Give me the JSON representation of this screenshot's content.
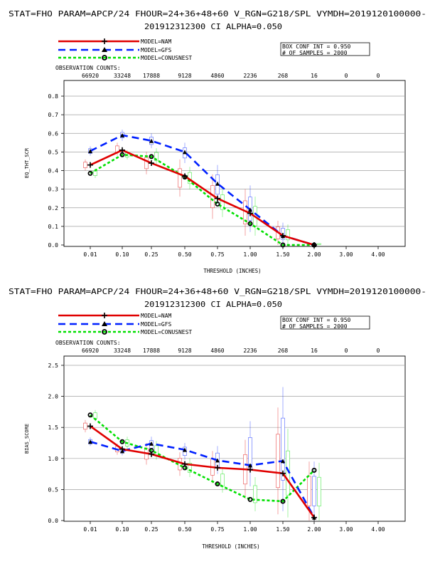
{
  "charts": [
    {
      "title_line1": "STAT=FHO PARAM=APCP/24 FHOUR=24+36+48+60 V_RGN=G218/SPL VYMDH=2019120100000-",
      "title_line2": "201912312300 CI ALPHA=0.050",
      "legend": [
        "MODEL=NAM",
        "MODEL=GFS",
        "MODEL=CONUSNEST"
      ],
      "box_conf": "BOX CONF INT = 0.950",
      "samples": "# OF SAMPLES =  2000",
      "obs_label": "OBSERVATION COUNTS:",
      "obs_counts": [
        "66920",
        "33248",
        "17888",
        "9128",
        "4860",
        "2236",
        "268",
        "16",
        "0",
        "0"
      ],
      "xlabel": "THRESHOLD (INCHES)",
      "ylabel": "EQ_THT_SCR",
      "yticks": [
        "0.0",
        "0.1",
        "0.2",
        "0.3",
        "0.4",
        "0.5",
        "0.6",
        "0.7",
        "0.8"
      ],
      "xticks": [
        "0.01",
        "0.10",
        "0.25",
        "0.50",
        "0.75",
        "1.00",
        "1.50",
        "2.00",
        "3.00",
        "4.00"
      ]
    },
    {
      "title_line1": "STAT=FHO PARAM=APCP/24 FHOUR=24+36+48+60 V_RGN=G218/SPL VYMDH=2019120100000-",
      "title_line2": "201912312300 CI ALPHA=0.050",
      "legend": [
        "MODEL=NAM",
        "MODEL=GFS",
        "MODEL=CONUSNEST"
      ],
      "box_conf": "BOX CONF INT = 0.950",
      "samples": "# OF SAMPLES =  2000",
      "obs_label": "OBSERVATION COUNTS:",
      "obs_counts": [
        "66920",
        "33248",
        "17888",
        "9128",
        "4860",
        "2236",
        "268",
        "16",
        "0",
        "0"
      ],
      "xlabel": "THRESHOLD (INCHES)",
      "ylabel": "BIAS_SCORE",
      "yticks": [
        "0.0",
        "0.5",
        "1.0",
        "1.5",
        "2.0",
        "2.5"
      ],
      "xticks": [
        "0.01",
        "0.10",
        "0.25",
        "0.50",
        "0.75",
        "1.00",
        "1.50",
        "2.00",
        "3.00",
        "4.00"
      ]
    }
  ],
  "colors": {
    "nam": "#e00000",
    "gfs": "#0020ff",
    "conusnest": "#00e000",
    "grid": "#a0a0a0"
  },
  "chart_data": [
    {
      "type": "line",
      "ylabel": "EQ_THT_SCR",
      "xlabel": "THRESHOLD (INCHES)",
      "ylim": [
        0.0,
        0.85
      ],
      "categories": [
        "0.01",
        "0.10",
        "0.25",
        "0.50",
        "0.75",
        "1.00",
        "1.50",
        "2.00",
        "3.00",
        "4.00"
      ],
      "series": [
        {
          "name": "MODEL=NAM",
          "values": [
            0.43,
            0.51,
            0.44,
            0.37,
            0.25,
            0.17,
            0.05,
            0.0,
            null,
            null
          ],
          "ci_low": [
            0.4,
            0.48,
            0.38,
            0.26,
            0.14,
            0.05,
            0.0,
            0.0,
            null,
            null
          ],
          "ci_high": [
            0.46,
            0.55,
            0.5,
            0.46,
            0.38,
            0.3,
            0.13,
            0.01,
            null,
            null
          ]
        },
        {
          "name": "MODEL=GFS",
          "values": [
            0.505,
            0.59,
            0.56,
            0.5,
            0.33,
            0.19,
            0.05,
            0.0,
            null,
            null
          ],
          "ci_low": [
            0.48,
            0.56,
            0.52,
            0.44,
            0.22,
            0.07,
            0.0,
            0.0,
            null,
            null
          ],
          "ci_high": [
            0.53,
            0.62,
            0.6,
            0.55,
            0.43,
            0.32,
            0.12,
            0.01,
            null,
            null
          ]
        },
        {
          "name": "MODEL=CONUSNEST",
          "values": [
            0.385,
            0.485,
            0.475,
            0.365,
            0.22,
            0.115,
            0.0,
            0.0,
            null,
            null
          ],
          "ci_low": [
            0.36,
            0.46,
            0.43,
            0.3,
            0.15,
            0.05,
            0.0,
            0.0,
            null,
            null
          ],
          "ci_high": [
            0.41,
            0.51,
            0.52,
            0.42,
            0.31,
            0.26,
            0.11,
            0.01,
            null,
            null
          ]
        }
      ]
    },
    {
      "type": "line",
      "ylabel": "BIAS_SCORE",
      "xlabel": "THRESHOLD (INCHES)",
      "ylim": [
        0.0,
        2.6
      ],
      "categories": [
        "0.01",
        "0.10",
        "0.25",
        "0.50",
        "0.75",
        "1.00",
        "1.50",
        "2.00",
        "3.00",
        "4.00"
      ],
      "series": [
        {
          "name": "MODEL=NAM",
          "values": [
            1.52,
            1.15,
            1.07,
            0.91,
            0.85,
            0.82,
            0.76,
            0.05,
            null,
            null
          ],
          "ci_low": [
            1.42,
            1.06,
            0.9,
            0.72,
            0.6,
            0.35,
            0.1,
            0.0,
            null,
            null
          ],
          "ci_high": [
            1.62,
            1.24,
            1.25,
            1.1,
            1.12,
            1.3,
            1.82,
            0.95,
            null,
            null
          ]
        },
        {
          "name": "MODEL=GFS",
          "values": [
            1.27,
            1.12,
            1.24,
            1.14,
            0.97,
            0.89,
            0.96,
            0.05,
            null,
            null
          ],
          "ci_low": [
            1.2,
            1.05,
            1.1,
            0.98,
            0.75,
            0.55,
            0.15,
            0.0,
            null,
            null
          ],
          "ci_high": [
            1.34,
            1.2,
            1.35,
            1.25,
            1.2,
            1.6,
            2.15,
            0.95,
            null,
            null
          ]
        },
        {
          "name": "MODEL=CONUSNEST",
          "values": [
            1.7,
            1.27,
            1.13,
            0.85,
            0.59,
            0.34,
            0.31,
            0.81,
            null,
            null
          ],
          "ci_low": [
            1.6,
            1.15,
            0.98,
            0.7,
            0.45,
            0.15,
            0.05,
            0.0,
            null,
            null
          ],
          "ci_high": [
            1.78,
            1.35,
            1.28,
            1.0,
            0.85,
            0.7,
            1.48,
            0.93,
            null,
            null
          ]
        }
      ]
    }
  ]
}
